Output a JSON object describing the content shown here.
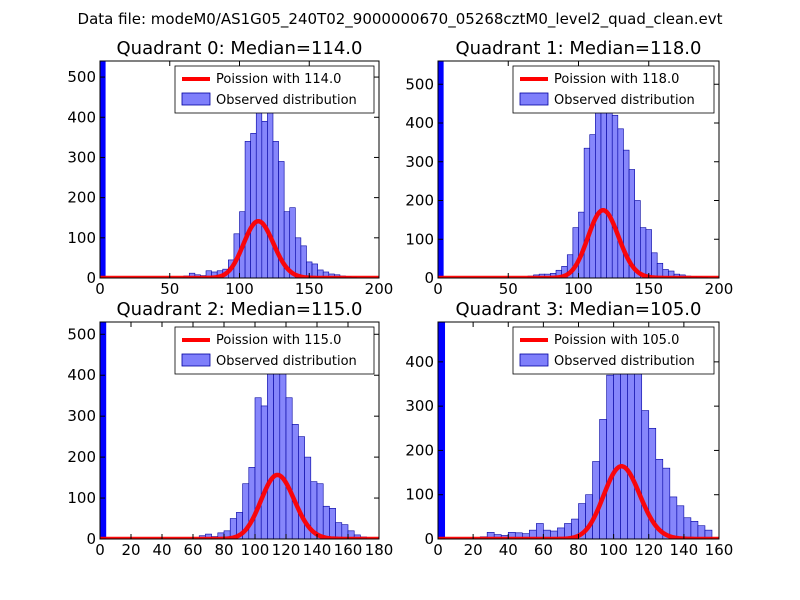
{
  "figure_title": "Data file: modeM0/AS1G05_240T02_9000000670_05268cztM0_level2_quad_clean.evt",
  "colors": {
    "bar_fill": "#7f7ffb",
    "bar_edge": "#0000a0",
    "curve": "#ff0000",
    "first_bar": "#0000ff"
  },
  "chart_data": [
    {
      "type": "bar",
      "title": "Quadrant 0: Median=114.0",
      "xlim": [
        0,
        200
      ],
      "ylim": [
        0,
        540
      ],
      "xticks": [
        0,
        50,
        100,
        150,
        200
      ],
      "yticks": [
        0,
        100,
        200,
        300,
        400,
        500
      ],
      "legend": [
        "Poission with 114.0",
        "Observed distribution"
      ],
      "bin_width": 4,
      "x": [
        0,
        60,
        64,
        68,
        72,
        76,
        80,
        84,
        88,
        92,
        96,
        100,
        104,
        108,
        112,
        116,
        120,
        124,
        128,
        132,
        136,
        140,
        144,
        148,
        152,
        156,
        160,
        164,
        168,
        172,
        176,
        180
      ],
      "values": [
        540,
        5,
        12,
        8,
        6,
        18,
        15,
        18,
        22,
        45,
        110,
        165,
        340,
        360,
        520,
        390,
        460,
        340,
        290,
        165,
        175,
        100,
        80,
        40,
        35,
        20,
        15,
        10,
        8,
        5,
        4,
        2
      ],
      "poisson_mean": 114
    },
    {
      "type": "bar",
      "title": "Quadrant 1: Median=118.0",
      "xlim": [
        0,
        200
      ],
      "ylim": [
        0,
        560
      ],
      "xticks": [
        0,
        50,
        100,
        150,
        200
      ],
      "yticks": [
        0,
        100,
        200,
        300,
        400,
        500
      ],
      "legend": [
        "Poission with 118.0",
        "Observed distribution"
      ],
      "bin_width": 4,
      "x": [
        0,
        64,
        68,
        72,
        76,
        80,
        84,
        88,
        92,
        96,
        100,
        104,
        108,
        112,
        116,
        120,
        124,
        128,
        132,
        136,
        140,
        144,
        148,
        152,
        156,
        160,
        164,
        168,
        172,
        176,
        180,
        184,
        188
      ],
      "values": [
        560,
        5,
        8,
        10,
        10,
        12,
        20,
        30,
        60,
        130,
        170,
        335,
        370,
        530,
        520,
        510,
        420,
        385,
        330,
        280,
        200,
        130,
        125,
        65,
        38,
        22,
        18,
        10,
        8,
        5,
        4,
        3,
        2
      ],
      "poisson_mean": 118
    },
    {
      "type": "bar",
      "title": "Quadrant 2: Median=115.0",
      "xlim": [
        0,
        180
      ],
      "ylim": [
        0,
        530
      ],
      "xticks": [
        0,
        20,
        40,
        60,
        80,
        100,
        120,
        140,
        160,
        180
      ],
      "yticks": [
        0,
        100,
        200,
        300,
        400,
        500
      ],
      "legend": [
        "Poission with 115.0",
        "Observed distribution"
      ],
      "bin_width": 4,
      "x": [
        0,
        64,
        68,
        72,
        76,
        80,
        84,
        88,
        92,
        96,
        100,
        104,
        108,
        112,
        116,
        120,
        124,
        128,
        132,
        136,
        140,
        144,
        148,
        152,
        156,
        160,
        164,
        168
      ],
      "values": [
        530,
        8,
        12,
        6,
        15,
        20,
        50,
        65,
        135,
        175,
        345,
        325,
        470,
        500,
        465,
        345,
        280,
        250,
        200,
        140,
        135,
        80,
        75,
        40,
        35,
        20,
        10,
        5
      ],
      "poisson_mean": 115
    },
    {
      "type": "bar",
      "title": "Quadrant 3: Median=105.0",
      "xlim": [
        0,
        160
      ],
      "ylim": [
        0,
        490
      ],
      "xticks": [
        0,
        20,
        40,
        60,
        80,
        100,
        120,
        140,
        160
      ],
      "yticks": [
        0,
        100,
        200,
        300,
        400
      ],
      "legend": [
        "Poission with 105.0",
        "Observed distribution"
      ],
      "bin_width": 4,
      "x": [
        0,
        24,
        28,
        32,
        36,
        40,
        44,
        48,
        52,
        56,
        60,
        64,
        68,
        72,
        76,
        80,
        84,
        88,
        92,
        96,
        100,
        104,
        108,
        112,
        116,
        120,
        124,
        128,
        132,
        136,
        140,
        144,
        148,
        152
      ],
      "values": [
        490,
        5,
        15,
        10,
        8,
        15,
        14,
        12,
        20,
        35,
        20,
        18,
        25,
        35,
        45,
        80,
        100,
        175,
        270,
        370,
        410,
        430,
        460,
        460,
        290,
        250,
        180,
        160,
        95,
        75,
        48,
        40,
        30,
        20
      ],
      "poisson_mean": 105
    }
  ]
}
